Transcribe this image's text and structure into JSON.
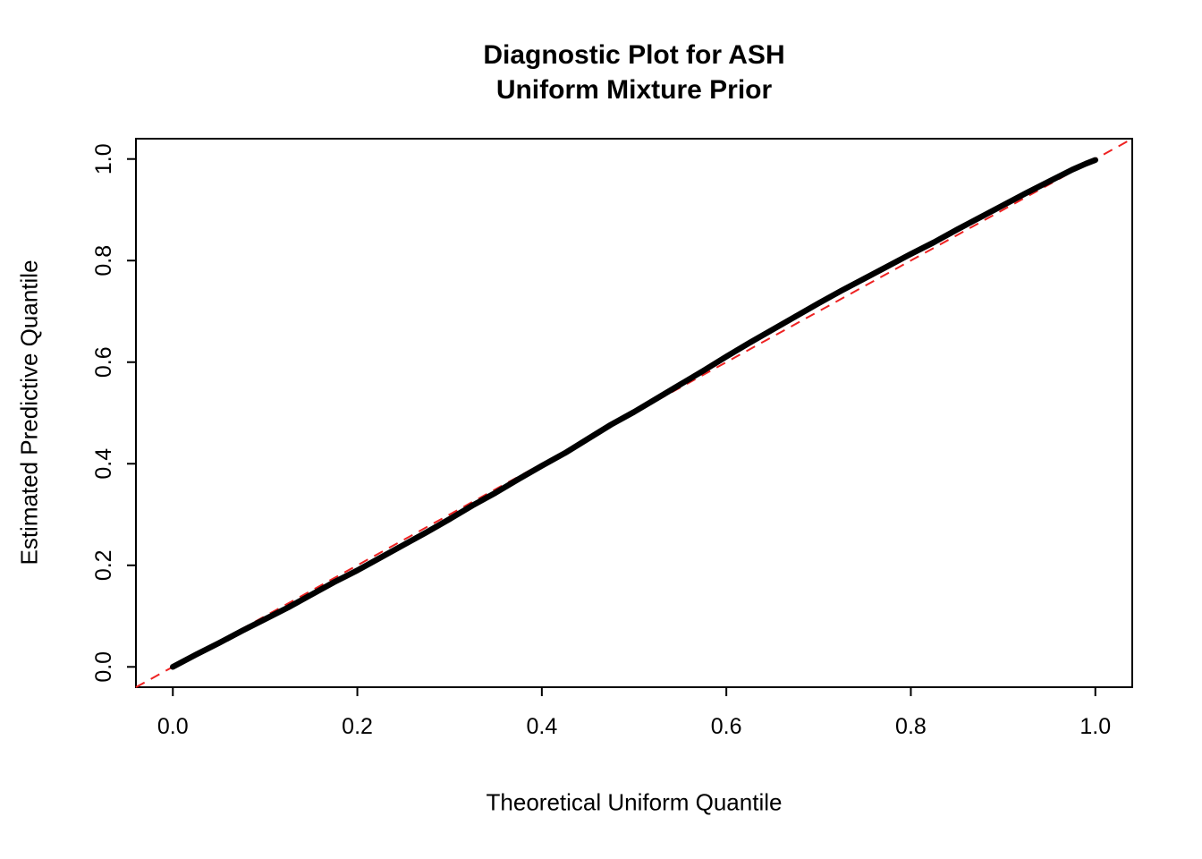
{
  "chart": {
    "title_line1": "Diagnostic Plot for ASH",
    "title_line2": "Uniform Mixture Prior",
    "xlabel": "Theoretical Uniform Quantile",
    "ylabel": "Estimated Predictive Quantile"
  },
  "chart_data": {
    "type": "line",
    "title": "Diagnostic Plot for ASH\nUniform Mixture Prior",
    "xlabel": "Theoretical Uniform Quantile",
    "ylabel": "Estimated Predictive Quantile",
    "xlim": [
      -0.04,
      1.04
    ],
    "ylim": [
      -0.04,
      1.04
    ],
    "grid": false,
    "box": true,
    "xticks": {
      "values": [
        0.0,
        0.2,
        0.4,
        0.6,
        0.8,
        1.0
      ],
      "labels": [
        "0.0",
        "0.2",
        "0.4",
        "0.6",
        "0.8",
        "1.0"
      ]
    },
    "yticks": {
      "values": [
        0.0,
        0.2,
        0.4,
        0.6,
        0.8,
        1.0
      ],
      "labels": [
        "0.0",
        "0.2",
        "0.4",
        "0.6",
        "0.8",
        "1.0"
      ]
    },
    "series": [
      {
        "name": "estimated-predictive-quantile",
        "color": "#000000",
        "line_width": 6.5,
        "x": [
          0.0,
          0.025,
          0.05,
          0.075,
          0.1,
          0.125,
          0.15,
          0.175,
          0.2,
          0.225,
          0.25,
          0.275,
          0.3,
          0.325,
          0.35,
          0.375,
          0.4,
          0.425,
          0.45,
          0.475,
          0.5,
          0.525,
          0.55,
          0.575,
          0.6,
          0.625,
          0.65,
          0.675,
          0.7,
          0.725,
          0.75,
          0.775,
          0.8,
          0.825,
          0.85,
          0.875,
          0.9,
          0.925,
          0.95,
          0.975,
          0.99,
          1.0
        ],
        "y": [
          0.0,
          0.024,
          0.047,
          0.071,
          0.094,
          0.117,
          0.142,
          0.167,
          0.19,
          0.215,
          0.24,
          0.265,
          0.291,
          0.318,
          0.343,
          0.37,
          0.396,
          0.421,
          0.449,
          0.477,
          0.502,
          0.529,
          0.556,
          0.583,
          0.611,
          0.638,
          0.664,
          0.69,
          0.716,
          0.741,
          0.765,
          0.789,
          0.813,
          0.836,
          0.861,
          0.885,
          0.909,
          0.933,
          0.956,
          0.979,
          0.991,
          0.998
        ]
      }
    ],
    "reference_line": {
      "intercept": 0,
      "slope": 1,
      "color": "#ee2222",
      "style": "dashed",
      "line_width": 2
    }
  }
}
